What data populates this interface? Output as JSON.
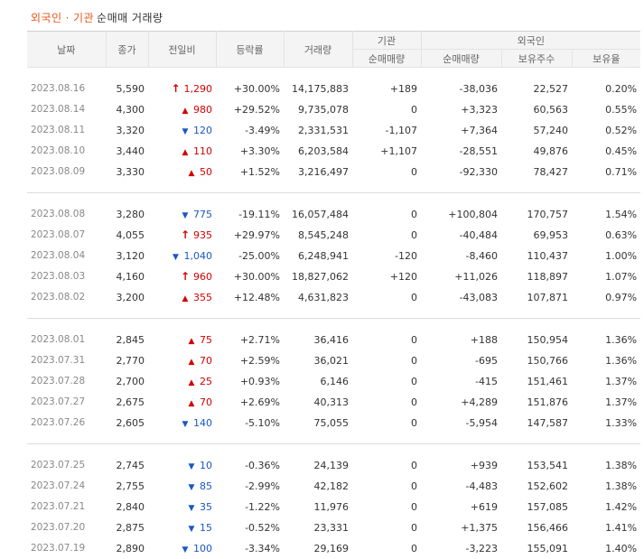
{
  "title": {
    "part1": "외국인",
    "dot": "·",
    "part2": "기관",
    "part3": "순매매 거래량"
  },
  "headers": {
    "date": "날짜",
    "close": "종가",
    "change": "전일비",
    "rate": "등락률",
    "volume": "거래량",
    "inst_group": "기관",
    "inst_net": "순매매량",
    "foreign_group": "외국인",
    "foreign_net": "순매매량",
    "foreign_hold": "보유주수",
    "foreign_ratio": "보유율"
  },
  "colors": {
    "up": "#d40000",
    "down": "#1a57c4",
    "accent": "#e8571b"
  },
  "groups": [
    [
      {
        "date": "2023.08.16",
        "close": "5,590",
        "dir": "limit-up",
        "change": "1,290",
        "rate": "+30.00%",
        "volume": "14,175,883",
        "inst": "+189",
        "frgn": "-38,036",
        "hold": "22,527",
        "ratio": "0.20%"
      },
      {
        "date": "2023.08.14",
        "close": "4,300",
        "dir": "up",
        "change": "980",
        "rate": "+29.52%",
        "volume": "9,735,078",
        "inst": "0",
        "frgn": "+3,323",
        "hold": "60,563",
        "ratio": "0.55%"
      },
      {
        "date": "2023.08.11",
        "close": "3,320",
        "dir": "down",
        "change": "120",
        "rate": "-3.49%",
        "volume": "2,331,531",
        "inst": "-1,107",
        "frgn": "+7,364",
        "hold": "57,240",
        "ratio": "0.52%"
      },
      {
        "date": "2023.08.10",
        "close": "3,440",
        "dir": "up",
        "change": "110",
        "rate": "+3.30%",
        "volume": "6,203,584",
        "inst": "+1,107",
        "frgn": "-28,551",
        "hold": "49,876",
        "ratio": "0.45%"
      },
      {
        "date": "2023.08.09",
        "close": "3,330",
        "dir": "up",
        "change": "50",
        "rate": "+1.52%",
        "volume": "3,216,497",
        "inst": "0",
        "frgn": "-92,330",
        "hold": "78,427",
        "ratio": "0.71%"
      }
    ],
    [
      {
        "date": "2023.08.08",
        "close": "3,280",
        "dir": "down",
        "change": "775",
        "rate": "-19.11%",
        "volume": "16,057,484",
        "inst": "0",
        "frgn": "+100,804",
        "hold": "170,757",
        "ratio": "1.54%"
      },
      {
        "date": "2023.08.07",
        "close": "4,055",
        "dir": "limit-up",
        "change": "935",
        "rate": "+29.97%",
        "volume": "8,545,248",
        "inst": "0",
        "frgn": "-40,484",
        "hold": "69,953",
        "ratio": "0.63%"
      },
      {
        "date": "2023.08.04",
        "close": "3,120",
        "dir": "down",
        "change": "1,040",
        "rate": "-25.00%",
        "volume": "6,248,941",
        "inst": "-120",
        "frgn": "-8,460",
        "hold": "110,437",
        "ratio": "1.00%"
      },
      {
        "date": "2023.08.03",
        "close": "4,160",
        "dir": "limit-up",
        "change": "960",
        "rate": "+30.00%",
        "volume": "18,827,062",
        "inst": "+120",
        "frgn": "+11,026",
        "hold": "118,897",
        "ratio": "1.07%"
      },
      {
        "date": "2023.08.02",
        "close": "3,200",
        "dir": "up",
        "change": "355",
        "rate": "+12.48%",
        "volume": "4,631,823",
        "inst": "0",
        "frgn": "-43,083",
        "hold": "107,871",
        "ratio": "0.97%"
      }
    ],
    [
      {
        "date": "2023.08.01",
        "close": "2,845",
        "dir": "up",
        "change": "75",
        "rate": "+2.71%",
        "volume": "36,416",
        "inst": "0",
        "frgn": "+188",
        "hold": "150,954",
        "ratio": "1.36%"
      },
      {
        "date": "2023.07.31",
        "close": "2,770",
        "dir": "up",
        "change": "70",
        "rate": "+2.59%",
        "volume": "36,021",
        "inst": "0",
        "frgn": "-695",
        "hold": "150,766",
        "ratio": "1.36%"
      },
      {
        "date": "2023.07.28",
        "close": "2,700",
        "dir": "up",
        "change": "25",
        "rate": "+0.93%",
        "volume": "6,146",
        "inst": "0",
        "frgn": "-415",
        "hold": "151,461",
        "ratio": "1.37%"
      },
      {
        "date": "2023.07.27",
        "close": "2,675",
        "dir": "up",
        "change": "70",
        "rate": "+2.69%",
        "volume": "40,313",
        "inst": "0",
        "frgn": "+4,289",
        "hold": "151,876",
        "ratio": "1.37%"
      },
      {
        "date": "2023.07.26",
        "close": "2,605",
        "dir": "down",
        "change": "140",
        "rate": "-5.10%",
        "volume": "75,055",
        "inst": "0",
        "frgn": "-5,954",
        "hold": "147,587",
        "ratio": "1.33%"
      }
    ],
    [
      {
        "date": "2023.07.25",
        "close": "2,745",
        "dir": "down",
        "change": "10",
        "rate": "-0.36%",
        "volume": "24,139",
        "inst": "0",
        "frgn": "+939",
        "hold": "153,541",
        "ratio": "1.38%"
      },
      {
        "date": "2023.07.24",
        "close": "2,755",
        "dir": "down",
        "change": "85",
        "rate": "-2.99%",
        "volume": "42,182",
        "inst": "0",
        "frgn": "-4,483",
        "hold": "152,602",
        "ratio": "1.38%"
      },
      {
        "date": "2023.07.21",
        "close": "2,840",
        "dir": "down",
        "change": "35",
        "rate": "-1.22%",
        "volume": "11,976",
        "inst": "0",
        "frgn": "+619",
        "hold": "157,085",
        "ratio": "1.42%"
      },
      {
        "date": "2023.07.20",
        "close": "2,875",
        "dir": "down",
        "change": "15",
        "rate": "-0.52%",
        "volume": "23,331",
        "inst": "0",
        "frgn": "+1,375",
        "hold": "156,466",
        "ratio": "1.41%"
      },
      {
        "date": "2023.07.19",
        "close": "2,890",
        "dir": "down",
        "change": "100",
        "rate": "-3.34%",
        "volume": "29,169",
        "inst": "0",
        "frgn": "-3,223",
        "hold": "155,091",
        "ratio": "1.40%"
      }
    ]
  ]
}
